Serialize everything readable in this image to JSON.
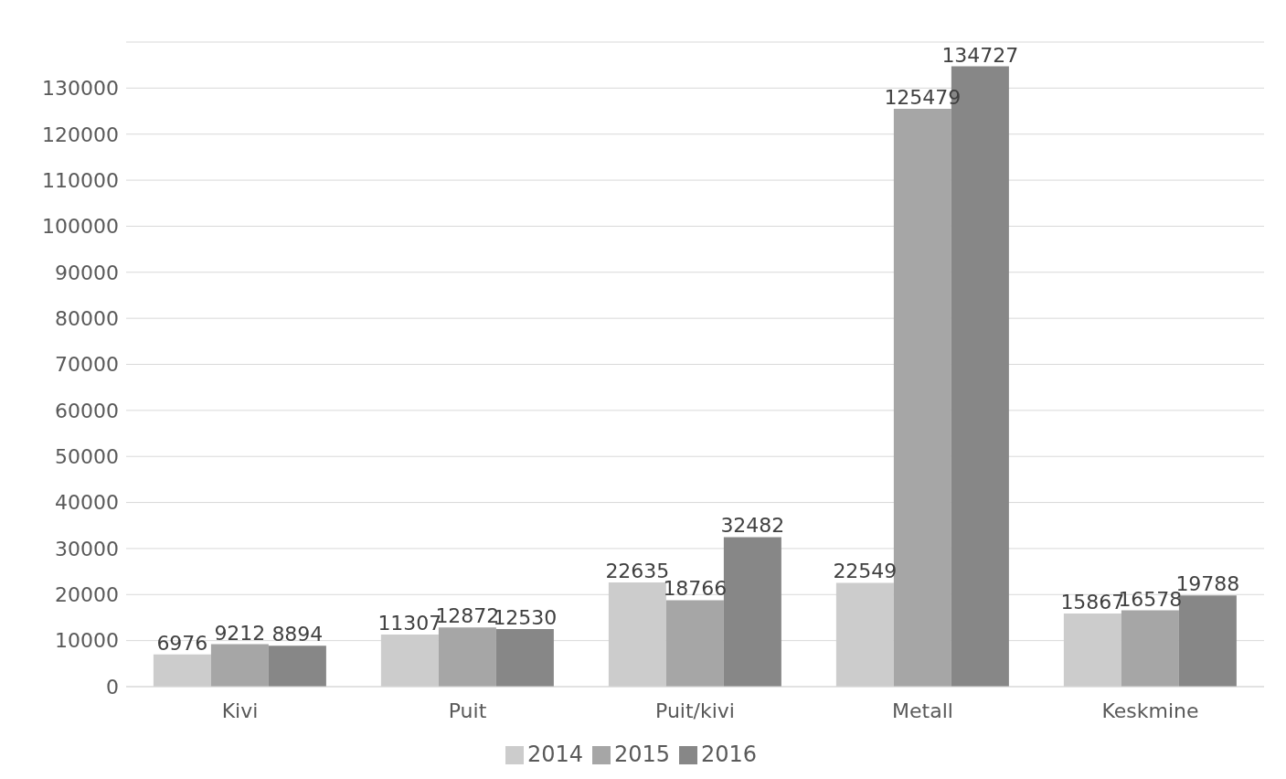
{
  "chart_data": {
    "type": "bar",
    "categories": [
      "Kivi",
      "Puit",
      "Puit/kivi",
      "Metall",
      "Keskmine"
    ],
    "series": [
      {
        "name": "2014",
        "color": "#cccccc",
        "values": [
          6976,
          11307,
          22635,
          22549,
          15867
        ]
      },
      {
        "name": "2015",
        "color": "#a6a6a6",
        "values": [
          9212,
          12872,
          18766,
          125479,
          16578
        ]
      },
      {
        "name": "2016",
        "color": "#878787",
        "values": [
          8894,
          12530,
          32482,
          134727,
          19788
        ]
      }
    ],
    "ylim": [
      0,
      140000
    ],
    "yticks": [
      0,
      10000,
      20000,
      30000,
      40000,
      50000,
      60000,
      70000,
      80000,
      90000,
      100000,
      110000,
      120000,
      130000
    ],
    "grid": "y",
    "legend": "bottom",
    "data_labels": true
  }
}
